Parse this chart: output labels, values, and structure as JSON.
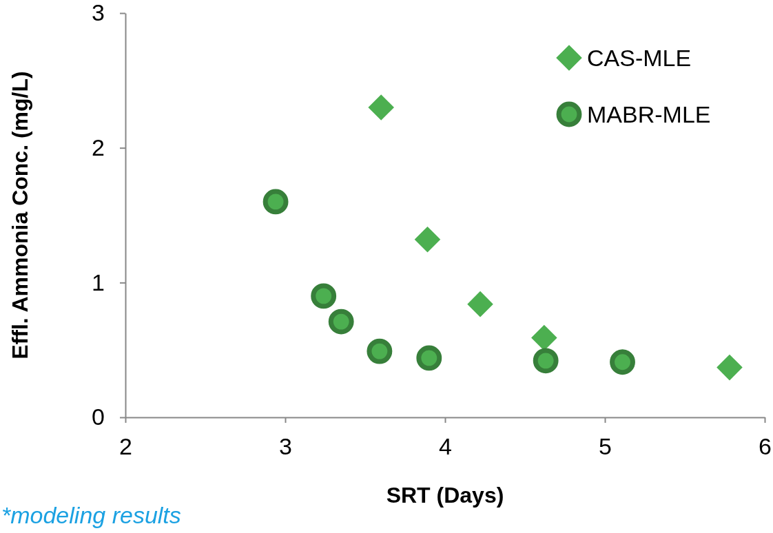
{
  "chart_data": {
    "type": "scatter",
    "xlabel": "SRT (Days)",
    "ylabel": "Effl. Ammonia Conc. (mg/L)",
    "annotations": [
      "*modeling results"
    ],
    "xlim": [
      2,
      6
    ],
    "xticks": [
      2,
      3,
      4,
      5,
      6
    ],
    "ylim": [
      0,
      3
    ],
    "yticks": [
      0,
      1,
      2,
      3
    ],
    "grid": false,
    "legend": "top right",
    "series": [
      {
        "name": "CAS-MLE",
        "color": "#4caf50",
        "marker": "diamond",
        "x": [
          3.6,
          3.89,
          4.22,
          4.62,
          5.78
        ],
        "values": [
          2.3,
          1.32,
          0.84,
          0.59,
          0.37
        ]
      },
      {
        "name": "MABR-MLE",
        "color": "#4caf50",
        "marker": "circle",
        "x": [
          2.94,
          3.24,
          3.35,
          3.59,
          3.9,
          4.63,
          5.11
        ],
        "values": [
          1.6,
          0.9,
          0.71,
          0.49,
          0.44,
          0.42,
          0.41
        ]
      }
    ]
  }
}
